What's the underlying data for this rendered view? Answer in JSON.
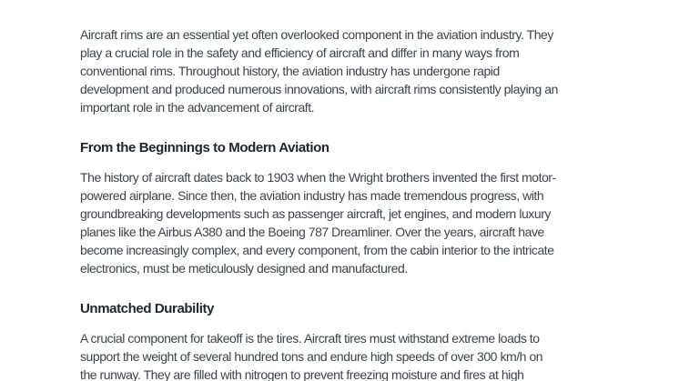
{
  "page": {
    "background_color": "#ffffff",
    "body_text_color": "#3f4247",
    "heading_text_color": "#23262a"
  },
  "article": {
    "intro": {
      "lines": [
        "Aircraft rims are an essential yet often overlooked component in the aviation industry. They",
        "play a crucial role in the safety and efficiency of aircraft and differ in many ways from",
        "conventional rims. Throughout history, the aviation industry has undergone rapid",
        "development and produced numerous innovations, with aircraft rims consistently playing an",
        "important role in the advancement of aircraft."
      ]
    },
    "sections": [
      {
        "heading": "From the Beginnings to Modern Aviation",
        "lines": [
          "The history of aircraft dates back to 1903 when the Wright brothers invented the first motor-",
          "powered airplane. Since then, the aviation industry has made tremendous progress, with",
          "groundbreaking developments such as passenger aircraft, jet engines, and modern luxury",
          "planes like the Airbus A380 and the Boeing 787 Dreamliner. Over the years, aircraft have",
          "become increasingly complex, and every component, from the cabin interior to the intricate",
          "electronics, must be meticulously designed and manufactured."
        ]
      },
      {
        "heading": "Unmatched Durability",
        "lines": [
          "A crucial component for takeoff is the tires. Aircraft tires must withstand extreme loads to",
          "support the weight of several hundred tons and endure high speeds of over 300 km/h on",
          "the runway. They are filled with nitrogen to prevent freezing moisture and fires at high"
        ]
      }
    ]
  }
}
